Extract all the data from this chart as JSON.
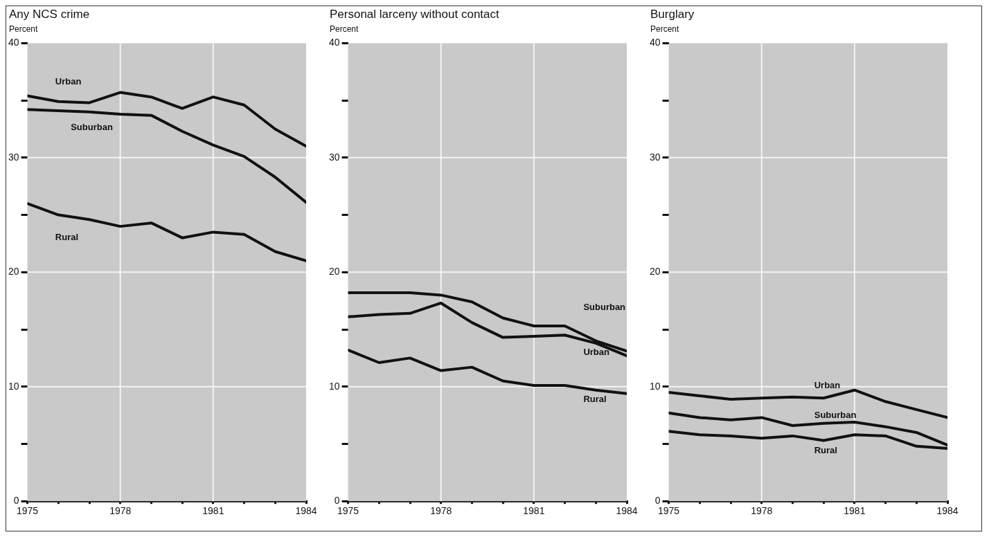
{
  "chart_data": [
    {
      "type": "line",
      "title": "Any NCS crime",
      "ylabel": "Percent",
      "x": [
        1975,
        1976,
        1977,
        1978,
        1979,
        1980,
        1981,
        1982,
        1983,
        1984
      ],
      "xlim": [
        1975,
        1984
      ],
      "xticks": [
        1975,
        {
          "value": 1976,
          "label": null
        },
        {
          "value": 1977,
          "label": null
        },
        1978,
        {
          "value": 1979,
          "label": null
        },
        {
          "value": 1980,
          "label": null
        },
        1981,
        {
          "value": 1982,
          "label": null
        },
        {
          "value": 1983,
          "label": null
        },
        1984
      ],
      "ylim": [
        0,
        40
      ],
      "yticks": [
        0,
        {
          "value": 5,
          "label": null
        },
        10,
        {
          "value": 15,
          "label": null
        },
        20,
        {
          "value": 25,
          "label": null
        },
        30,
        {
          "value": 35,
          "label": null
        },
        40
      ],
      "grid": true,
      "marker": "none",
      "series": [
        {
          "name": "Urban",
          "color": "#111111",
          "values": [
            35.4,
            34.9,
            34.8,
            35.7,
            35.3,
            34.3,
            35.3,
            34.6,
            32.5,
            31.0
          ]
        },
        {
          "name": "Suburban",
          "color": "#111111",
          "values": [
            34.2,
            34.1,
            34.0,
            33.8,
            33.7,
            32.3,
            31.1,
            30.1,
            28.3,
            26.1
          ]
        },
        {
          "name": "Rural",
          "color": "#111111",
          "values": [
            26.0,
            25.0,
            24.6,
            24.0,
            24.3,
            23.0,
            23.5,
            23.3,
            21.8,
            21.0
          ]
        }
      ]
    },
    {
      "type": "line",
      "title": "Personal larceny without contact",
      "ylabel": "Percent",
      "x": [
        1975,
        1976,
        1977,
        1978,
        1979,
        1980,
        1981,
        1982,
        1983,
        1984
      ],
      "xlim": [
        1975,
        1984
      ],
      "xticks": [
        1975,
        {
          "value": 1976,
          "label": null
        },
        {
          "value": 1977,
          "label": null
        },
        1978,
        {
          "value": 1979,
          "label": null
        },
        {
          "value": 1980,
          "label": null
        },
        1981,
        {
          "value": 1982,
          "label": null
        },
        {
          "value": 1983,
          "label": null
        },
        1984
      ],
      "ylim": [
        0,
        40
      ],
      "yticks": [
        0,
        {
          "value": 5,
          "label": null
        },
        10,
        {
          "value": 15,
          "label": null
        },
        20,
        {
          "value": 25,
          "label": null
        },
        30,
        {
          "value": 35,
          "label": null
        },
        40
      ],
      "grid": true,
      "marker": "none",
      "series": [
        {
          "name": "Suburban",
          "color": "#111111",
          "values": [
            18.2,
            18.2,
            18.2,
            18.0,
            17.4,
            16.0,
            15.3,
            15.3,
            14.0,
            13.1
          ]
        },
        {
          "name": "Urban",
          "color": "#111111",
          "values": [
            16.1,
            16.3,
            16.4,
            17.3,
            15.6,
            14.3,
            14.4,
            14.5,
            13.8,
            12.7
          ]
        },
        {
          "name": "Rural",
          "color": "#111111",
          "values": [
            13.2,
            12.1,
            12.5,
            11.4,
            11.7,
            10.5,
            10.1,
            10.1,
            9.7,
            9.4
          ]
        }
      ]
    },
    {
      "type": "line",
      "title": "Burglary",
      "ylabel": "Percent",
      "x": [
        1975,
        1976,
        1977,
        1978,
        1979,
        1980,
        1981,
        1982,
        1983,
        1984
      ],
      "xlim": [
        1975,
        1984
      ],
      "xticks": [
        1975,
        {
          "value": 1976,
          "label": null
        },
        {
          "value": 1977,
          "label": null
        },
        1978,
        {
          "value": 1979,
          "label": null
        },
        {
          "value": 1980,
          "label": null
        },
        1981,
        {
          "value": 1982,
          "label": null
        },
        {
          "value": 1983,
          "label": null
        },
        1984
      ],
      "ylim": [
        0,
        40
      ],
      "yticks": [
        0,
        {
          "value": 5,
          "label": null
        },
        10,
        {
          "value": 15,
          "label": null
        },
        20,
        {
          "value": 25,
          "label": null
        },
        30,
        {
          "value": 35,
          "label": null
        },
        40
      ],
      "grid": true,
      "marker": "none",
      "series": [
        {
          "name": "Urban",
          "color": "#111111",
          "values": [
            9.5,
            9.2,
            8.9,
            9.0,
            9.1,
            9.0,
            9.7,
            8.7,
            8.0,
            7.3
          ]
        },
        {
          "name": "Suburban",
          "color": "#111111",
          "values": [
            7.7,
            7.3,
            7.1,
            7.3,
            6.6,
            6.8,
            6.9,
            6.5,
            6.0,
            4.9
          ]
        },
        {
          "name": "Rural",
          "color": "#111111",
          "values": [
            6.1,
            5.8,
            5.7,
            5.5,
            5.7,
            5.3,
            5.8,
            5.7,
            4.8,
            4.6
          ]
        }
      ]
    }
  ]
}
